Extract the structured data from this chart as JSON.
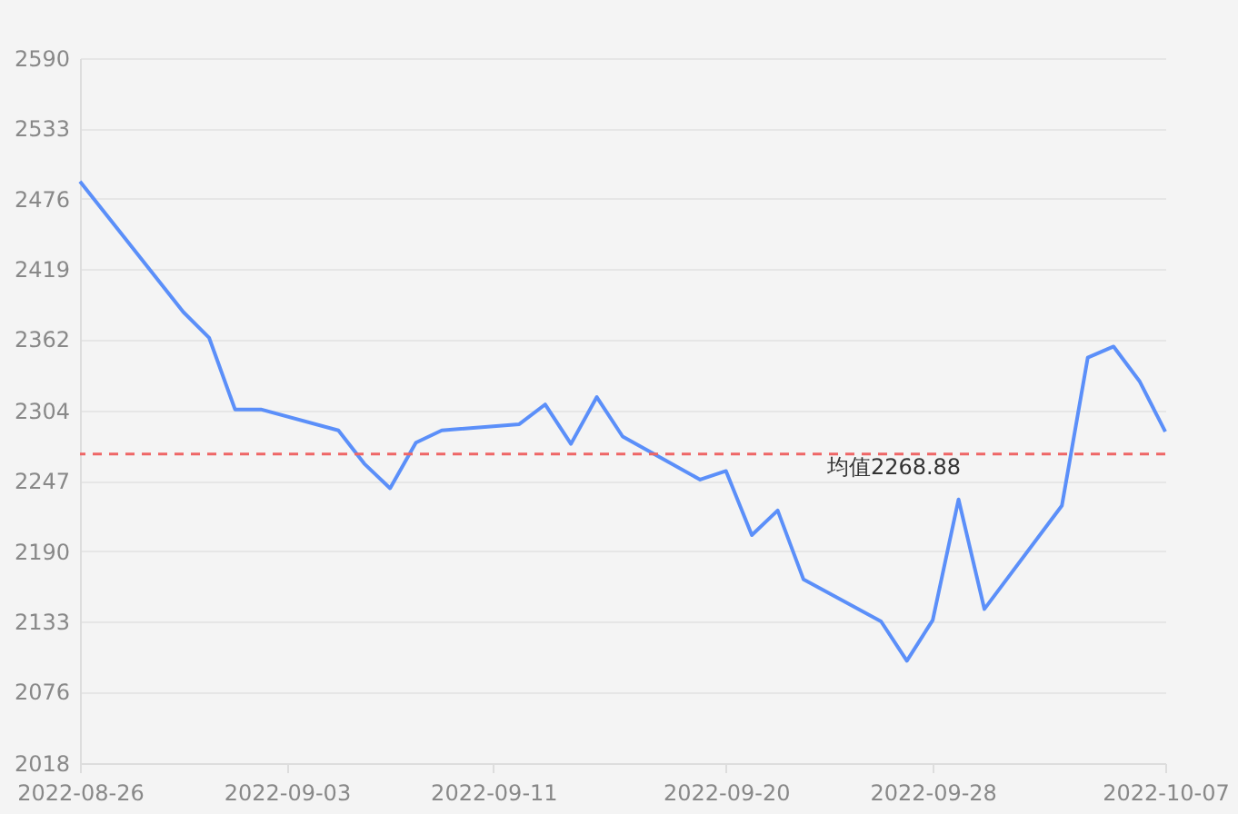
{
  "chart_data": {
    "type": "line",
    "x": [
      "2022-08-26",
      "2022-08-30",
      "2022-08-31",
      "2022-09-01",
      "2022-09-02",
      "2022-09-05",
      "2022-09-06",
      "2022-09-07",
      "2022-09-08",
      "2022-09-09",
      "2022-09-12",
      "2022-09-13",
      "2022-09-14",
      "2022-09-15",
      "2022-09-16",
      "2022-09-19",
      "2022-09-20",
      "2022-09-21",
      "2022-09-22",
      "2022-09-23",
      "2022-09-26",
      "2022-09-27",
      "2022-09-28",
      "2022-09-29",
      "2022-09-30",
      "2022-10-03",
      "2022-10-04",
      "2022-10-05",
      "2022-10-06",
      "2022-10-07"
    ],
    "series": [
      {
        "color": "#5b8ff9",
        "values": [
          2490,
          2384,
          2363,
          2305,
          2305,
          2288,
          2261,
          2241,
          2278,
          2288,
          2293,
          2309,
          2277,
          2315,
          2283,
          2248,
          2255,
          2203,
          2223,
          2167,
          2133,
          2101,
          2134,
          2232,
          2143,
          2227,
          2347,
          2356,
          2328,
          2287
        ]
      }
    ],
    "xlim": [
      "2022-08-26",
      "2022-10-07"
    ],
    "xticks": [
      "2022-08-26",
      "2022-09-03",
      "2022-09-11",
      "2022-09-20",
      "2022-09-28",
      "2022-10-07"
    ],
    "ylim": [
      2018,
      2590
    ],
    "yticks": [
      2018,
      2076,
      2133,
      2190,
      2247,
      2304,
      2362,
      2419,
      2476,
      2533,
      2590
    ],
    "ref_lines": [
      {
        "axis": "y",
        "value": 2268.88,
        "label": "均值2268.88",
        "color": "#ee6666",
        "line_style": "dashed"
      }
    ],
    "grid": "y",
    "marker": "none",
    "line_style": "solid"
  }
}
